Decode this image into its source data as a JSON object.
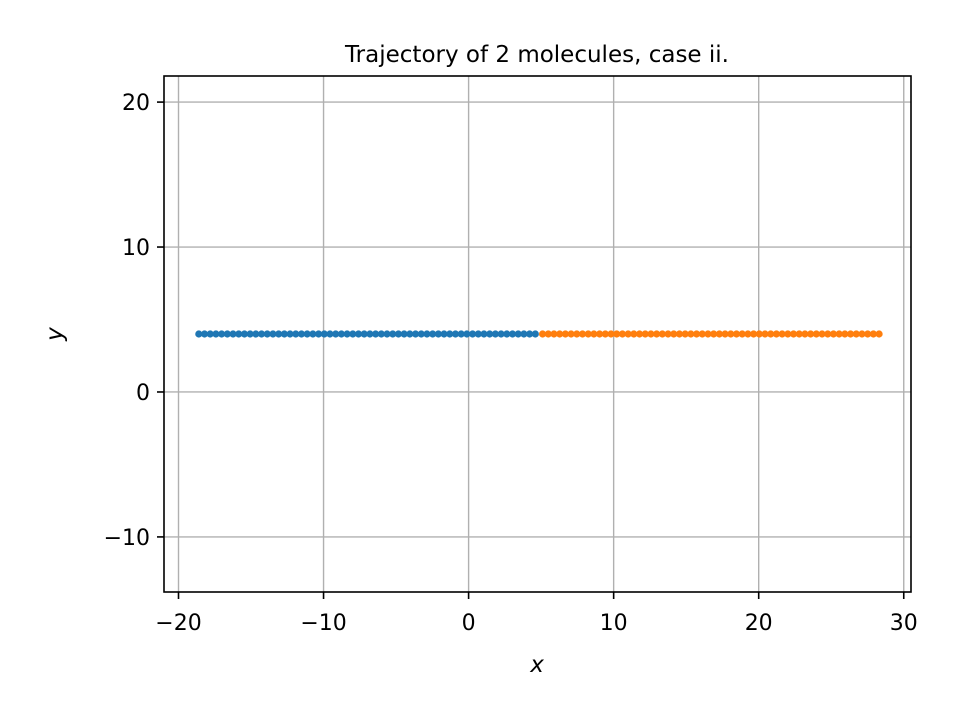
{
  "chart_data": {
    "type": "scatter",
    "title": "Trajectory of 2 molecules, case ii.",
    "xlabel": "x",
    "ylabel": "y",
    "xlim": [
      -21,
      30.5
    ],
    "ylim": [
      -13.8,
      21.8
    ],
    "xticks": [
      -20,
      -10,
      0,
      10,
      20,
      30
    ],
    "yticks": [
      -10,
      0,
      10,
      20
    ],
    "xtick_labels": [
      "−20",
      "−10",
      "0",
      "10",
      "20",
      "30"
    ],
    "ytick_labels": [
      "−10",
      "0",
      "10",
      "20"
    ],
    "grid": true,
    "series": [
      {
        "x_start": -18.6,
        "x_end": 4.6,
        "y": 4.0,
        "points": 60,
        "color": "#1f77b4"
      },
      {
        "x_start": 5.1,
        "x_end": 28.3,
        "y": 4.0,
        "points": 60,
        "color": "#ff7f0e"
      }
    ]
  }
}
